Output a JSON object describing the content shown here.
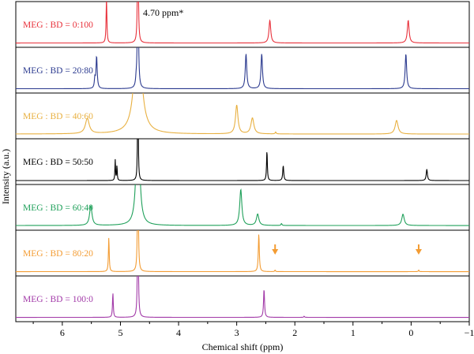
{
  "chart_data": {
    "type": "line",
    "title": "",
    "xlabel": "Chemical shift (ppm)",
    "ylabel": "Intensity (a.u.)",
    "xlim": [
      6.8,
      -1
    ],
    "x_reversed": true,
    "x_ticks": [
      6,
      5,
      4,
      3,
      2,
      1,
      0,
      -1
    ],
    "x_tick_labels": [
      "6",
      "5",
      "4",
      "3",
      "2",
      "1",
      "0",
      "−1"
    ],
    "annotation": "4.70 ppm*",
    "annotation_x": 4.7,
    "grid": false,
    "stacked_panels": true,
    "series": [
      {
        "name": "MEG : BD = 0:100",
        "color": "#e8303a",
        "baseline": 0.01,
        "peaks": [
          {
            "x": 5.24,
            "h": 1.2,
            "w": 0.008
          },
          {
            "x": 4.7,
            "h": 3.5,
            "w": 0.008
          },
          {
            "x": 2.43,
            "h": 0.6,
            "w": 0.018
          },
          {
            "x": 0.05,
            "h": 0.6,
            "w": 0.018
          }
        ]
      },
      {
        "name": "MEG : BD = 20:80",
        "color": "#2b3a8f",
        "baseline": 0.01,
        "peaks": [
          {
            "x": 5.41,
            "h": 0.85,
            "w": 0.012
          },
          {
            "x": 5.44,
            "h": 0.25,
            "w": 0.01
          },
          {
            "x": 4.73,
            "h": 0.15,
            "w": 0.01
          },
          {
            "x": 4.7,
            "h": 3.5,
            "w": 0.01
          },
          {
            "x": 2.84,
            "h": 0.92,
            "w": 0.015
          },
          {
            "x": 2.57,
            "h": 0.92,
            "w": 0.015
          },
          {
            "x": 0.09,
            "h": 0.92,
            "w": 0.015
          }
        ]
      },
      {
        "name": "MEG : BD = 40:60",
        "color": "#e8b040",
        "baseline": 0.02,
        "peaks": [
          {
            "x": 5.57,
            "h": 0.4,
            "w": 0.04
          },
          {
            "x": 4.7,
            "h": 3.5,
            "w": 0.06
          },
          {
            "x": 3.0,
            "h": 0.76,
            "w": 0.025
          },
          {
            "x": 2.73,
            "h": 0.42,
            "w": 0.03
          },
          {
            "x": 2.33,
            "h": 0.05,
            "w": 0.01
          },
          {
            "x": 0.25,
            "h": 0.36,
            "w": 0.03
          }
        ]
      },
      {
        "name": "MEG : BD = 50:50",
        "color": "#000000",
        "baseline": 0.0,
        "peaks": [
          {
            "x": 5.09,
            "h": 0.55,
            "w": 0.006
          },
          {
            "x": 5.06,
            "h": 0.4,
            "w": 0.006
          },
          {
            "x": 4.7,
            "h": 3.5,
            "w": 0.006
          },
          {
            "x": 2.48,
            "h": 0.8,
            "w": 0.008
          },
          {
            "x": 2.2,
            "h": 0.4,
            "w": 0.01
          },
          {
            "x": -0.27,
            "h": 0.3,
            "w": 0.012
          }
        ]
      },
      {
        "name": "MEG : BD = 60:40",
        "color": "#1fa05a",
        "baseline": 0.02,
        "peaks": [
          {
            "x": 5.51,
            "h": 0.52,
            "w": 0.025
          },
          {
            "x": 4.7,
            "h": 3.5,
            "w": 0.03
          },
          {
            "x": 2.93,
            "h": 0.95,
            "w": 0.022
          },
          {
            "x": 2.64,
            "h": 0.3,
            "w": 0.025
          },
          {
            "x": 2.23,
            "h": 0.05,
            "w": 0.01
          },
          {
            "x": 0.14,
            "h": 0.3,
            "w": 0.025
          }
        ]
      },
      {
        "name": "MEG : BD = 80:20",
        "color": "#f39c33",
        "baseline": 0.01,
        "peaks": [
          {
            "x": 5.2,
            "h": 0.9,
            "w": 0.008
          },
          {
            "x": 4.7,
            "h": 3.5,
            "w": 0.008
          },
          {
            "x": 2.62,
            "h": 1.0,
            "w": 0.01
          },
          {
            "x": 2.34,
            "h": 0.04,
            "w": 0.008
          },
          {
            "x": -0.13,
            "h": 0.04,
            "w": 0.008
          }
        ],
        "arrows_at": [
          2.34,
          -0.13
        ]
      },
      {
        "name": "MEG : BD = 100:0",
        "color": "#a23aa8",
        "baseline": 0.01,
        "peaks": [
          {
            "x": 5.13,
            "h": 0.65,
            "w": 0.008
          },
          {
            "x": 4.7,
            "h": 3.5,
            "w": 0.008
          },
          {
            "x": 2.53,
            "h": 0.75,
            "w": 0.01
          },
          {
            "x": 1.84,
            "h": 0.03,
            "w": 0.008
          }
        ]
      }
    ]
  }
}
